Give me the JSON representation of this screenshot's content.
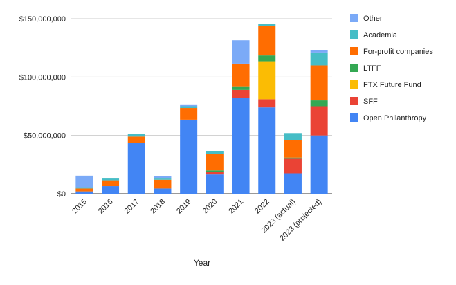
{
  "chart_data": {
    "type": "bar",
    "stacked": true,
    "title": "",
    "xlabel": "Year",
    "ylabel": "",
    "ylim": [
      0,
      150000000
    ],
    "yticks": [
      0,
      50000000,
      100000000,
      150000000
    ],
    "ytick_labels": [
      "$0",
      "$50,000,000",
      "$100,000,000",
      "$150,000,000"
    ],
    "grid": true,
    "legend_position": "right",
    "categories": [
      "2015",
      "2016",
      "2017",
      "2018",
      "2019",
      "2020",
      "2021",
      "2022",
      "2023 (actual)",
      "2023 (projected)"
    ],
    "series": [
      {
        "name": "Open Philanthropy",
        "color": "#4285f4",
        "values": [
          2000000,
          6500000,
          43500000,
          4500000,
          63500000,
          16500000,
          82000000,
          74000000,
          17500000,
          50000000
        ]
      },
      {
        "name": "SFF",
        "color": "#ea4335",
        "values": [
          0,
          0,
          0,
          0,
          0,
          2000000,
          7000000,
          7000000,
          12500000,
          25000000
        ]
      },
      {
        "name": "FTX Future Fund",
        "color": "#fbbc04",
        "values": [
          0,
          0,
          0,
          0,
          0,
          0,
          0,
          32500000,
          0,
          0
        ]
      },
      {
        "name": "LTFF",
        "color": "#34a853",
        "values": [
          0,
          0,
          0,
          0,
          0,
          1500000,
          2500000,
          5000000,
          1000000,
          5000000
        ]
      },
      {
        "name": "For-profit companies",
        "color": "#ff6d01",
        "values": [
          2500000,
          5000000,
          5500000,
          7500000,
          10000000,
          14000000,
          20000000,
          25000000,
          15000000,
          30000000
        ]
      },
      {
        "name": "Academia",
        "color": "#46bdc6",
        "values": [
          500000,
          1500000,
          2000000,
          1000000,
          1500000,
          2500000,
          0,
          2000000,
          6000000,
          11000000
        ]
      },
      {
        "name": "Other",
        "color": "#7baaf7",
        "values": [
          10500000,
          0,
          500000,
          2000000,
          1000000,
          0,
          20000000,
          0,
          0,
          2000000
        ]
      }
    ],
    "legend_order": [
      "Other",
      "Academia",
      "For-profit companies",
      "LTFF",
      "FTX Future Fund",
      "SFF",
      "Open Philanthropy"
    ]
  }
}
